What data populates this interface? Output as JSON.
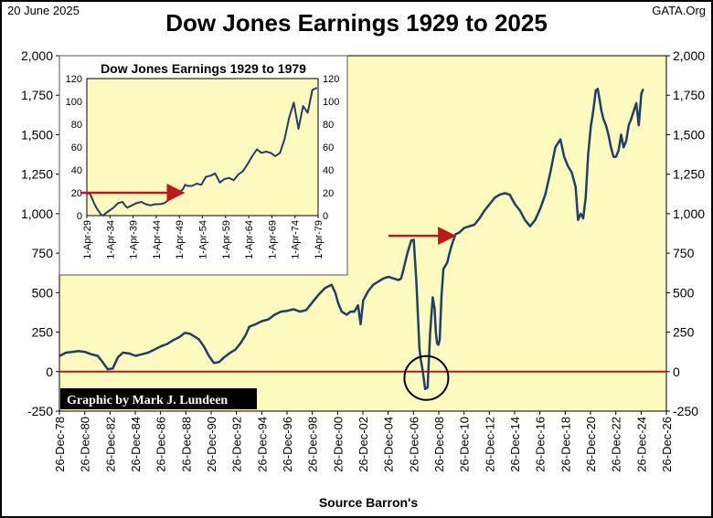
{
  "header": {
    "date": "20 June 2025",
    "source_site": "GATA.Org",
    "title": "Dow Jones Earnings 1929 to 2025"
  },
  "credit": "Graphic by Mark J. Lundeen",
  "source": "Source Barron's",
  "colors": {
    "plot_bg": "#fdfac0",
    "line": "#1f3f66",
    "arrow": "#c0171a",
    "zero_line": "#c0171a",
    "credit_bg": "#000000",
    "credit_text": "#ffffff"
  },
  "chart_data": [
    {
      "id": "main",
      "type": "line",
      "title": "Dow Jones Earnings 1929 to 2025",
      "xlabel": "Source Barron's",
      "ylabel": "",
      "x_range": [
        1978.98,
        2026.98
      ],
      "ylim": [
        -250,
        2000
      ],
      "y_ticks": [
        -250,
        0,
        250,
        500,
        750,
        1000,
        1250,
        1500,
        1750,
        2000
      ],
      "y_tick_labels": [
        "-250",
        "0",
        "250",
        "500",
        "750",
        "1,000",
        "1,250",
        "1,500",
        "1,750",
        "2,000"
      ],
      "x_ticks": [
        1978.98,
        1980.98,
        1982.98,
        1984.98,
        1986.98,
        1988.98,
        1990.98,
        1992.98,
        1994.98,
        1996.98,
        1998.98,
        2000.98,
        2002.98,
        2004.98,
        2006.98,
        2008.98,
        2010.98,
        2012.98,
        2014.98,
        2016.98,
        2018.98,
        2020.98,
        2022.98,
        2024.98,
        2026.98
      ],
      "x_tick_labels": [
        "26-Dec-78",
        "26-Dec-80",
        "26-Dec-82",
        "26-Dec-84",
        "26-Dec-86",
        "26-Dec-88",
        "26-Dec-90",
        "26-Dec-92",
        "26-Dec-94",
        "26-Dec-96",
        "26-Dec-98",
        "26-Dec-00",
        "26-Dec-02",
        "26-Dec-04",
        "26-Dec-06",
        "26-Dec-08",
        "26-Dec-10",
        "26-Dec-12",
        "26-Dec-14",
        "26-Dec-16",
        "26-Dec-18",
        "26-Dec-20",
        "26-Dec-22",
        "26-Dec-24",
        "26-Dec-26"
      ],
      "grid": false,
      "series": [
        {
          "x": [
            1979.0,
            1979.5,
            1980.0,
            1980.5,
            1981.0,
            1981.5,
            1982.0,
            1982.4,
            1982.8,
            1983.2,
            1983.6,
            1984.0,
            1984.5,
            1985.0,
            1985.5,
            1986.0,
            1986.5,
            1987.0,
            1987.5,
            1988.0,
            1988.5,
            1988.9,
            1989.3,
            1989.7,
            1990.0,
            1990.4,
            1990.8,
            1991.2,
            1991.6,
            1992.0,
            1992.5,
            1992.9,
            1993.3,
            1993.7,
            1994.0,
            1994.5,
            1995.0,
            1995.5,
            1996.0,
            1996.5,
            1997.0,
            1997.5,
            1998.0,
            1998.5,
            1999.0,
            1999.5,
            2000.0,
            2000.5,
            2000.8,
            2001.0,
            2001.3,
            2001.7,
            2002.0,
            2002.3,
            2002.6,
            2002.8,
            2003.0,
            2003.4,
            2003.8,
            2004.2,
            2004.6,
            2005.0,
            2005.4,
            2005.8,
            2006.0,
            2006.2,
            2006.5,
            2006.8,
            2007.0,
            2007.2,
            2007.35,
            2007.45,
            2007.55,
            2007.7,
            2007.9,
            2008.1,
            2008.3,
            2008.5,
            2008.65,
            2008.75,
            2008.85,
            2008.95,
            2009.05,
            2009.2,
            2009.35,
            2009.5,
            2009.65,
            2009.8,
            2010.0,
            2010.3,
            2010.6,
            2011.0,
            2011.4,
            2011.8,
            2012.2,
            2012.6,
            2013.0,
            2013.4,
            2013.8,
            2014.2,
            2014.6,
            2015.0,
            2015.4,
            2015.8,
            2016.2,
            2016.6,
            2017.0,
            2017.4,
            2017.8,
            2018.2,
            2018.6,
            2018.9,
            2019.2,
            2019.5,
            2019.8,
            2020.0,
            2020.2,
            2020.4,
            2020.6,
            2020.8,
            2021.0,
            2021.2,
            2021.4,
            2021.55,
            2021.7,
            2021.85,
            2022.0,
            2022.2,
            2022.4,
            2022.6,
            2022.8,
            2023.0,
            2023.2,
            2023.4,
            2023.6,
            2023.8,
            2024.0,
            2024.2,
            2024.4,
            2024.6,
            2024.8,
            2025.0,
            2025.15
          ],
          "y": [
            100,
            120,
            125,
            130,
            125,
            110,
            100,
            60,
            15,
            20,
            90,
            120,
            115,
            100,
            110,
            120,
            140,
            160,
            175,
            200,
            220,
            245,
            240,
            220,
            205,
            160,
            100,
            55,
            60,
            90,
            120,
            140,
            180,
            230,
            285,
            300,
            320,
            330,
            360,
            380,
            385,
            395,
            380,
            390,
            440,
            490,
            530,
            550,
            500,
            440,
            380,
            360,
            380,
            380,
            420,
            300,
            450,
            510,
            550,
            570,
            590,
            600,
            590,
            580,
            590,
            650,
            750,
            830,
            835,
            580,
            320,
            150,
            80,
            10,
            -110,
            -100,
            250,
            470,
            400,
            250,
            180,
            170,
            200,
            480,
            650,
            670,
            690,
            740,
            800,
            870,
            880,
            910,
            920,
            930,
            970,
            1020,
            1060,
            1100,
            1120,
            1130,
            1120,
            1060,
            1020,
            960,
            920,
            960,
            1030,
            1120,
            1260,
            1420,
            1470,
            1360,
            1300,
            1260,
            1170,
            960,
            1000,
            970,
            1100,
            1380,
            1550,
            1650,
            1780,
            1790,
            1720,
            1650,
            1600,
            1560,
            1500,
            1420,
            1360,
            1360,
            1400,
            1500,
            1420,
            1460,
            1560,
            1600,
            1650,
            1700,
            1560,
            1760,
            1790
          ]
        }
      ],
      "annotations": {
        "arrow": {
          "x_start": 2005.0,
          "x_end": 2010.0,
          "y": 860
        },
        "circle": {
          "x": 2008.0,
          "y": -40
        },
        "zero_line": 0
      }
    },
    {
      "id": "inset",
      "type": "line",
      "title": "Dow Jones Earnings 1929 to 1979",
      "xlabel": "",
      "ylabel": "",
      "x_range": [
        1929.25,
        1979.25
      ],
      "ylim": [
        0,
        120
      ],
      "y_ticks": [
        0,
        20,
        40,
        60,
        80,
        100,
        120
      ],
      "y_tick_labels": [
        "0",
        "20",
        "40",
        "60",
        "80",
        "100",
        "120"
      ],
      "x_ticks": [
        1929.25,
        1934.25,
        1939.25,
        1944.25,
        1949.25,
        1954.25,
        1959.25,
        1964.25,
        1969.25,
        1974.25,
        1979.25
      ],
      "x_tick_labels": [
        "1-Apr-29",
        "1-Apr-34",
        "1-Apr-39",
        "1-Apr-44",
        "1-Apr-49",
        "1-Apr-54",
        "1-Apr-59",
        "1-Apr-64",
        "1-Apr-69",
        "1-Apr-74",
        "1-Apr-79"
      ],
      "grid": false,
      "series": [
        {
          "x": [
            1929.3,
            1929.8,
            1930.3,
            1930.8,
            1931.3,
            1931.8,
            1932.3,
            1932.8,
            1933.3,
            1934.0,
            1935.0,
            1936.0,
            1937.0,
            1937.5,
            1938.0,
            1938.5,
            1939.0,
            1940.0,
            1941.0,
            1942.0,
            1943.0,
            1944.0,
            1945.0,
            1946.0,
            1947.0,
            1948.0,
            1949.0,
            1950.0,
            1950.5,
            1951.0,
            1952.0,
            1953.0,
            1954.0,
            1955.0,
            1956.0,
            1957.0,
            1958.0,
            1959.0,
            1960.0,
            1961.0,
            1962.0,
            1963.0,
            1964.0,
            1965.0,
            1966.0,
            1967.0,
            1968.0,
            1969.0,
            1970.0,
            1971.0,
            1972.0,
            1973.0,
            1974.0,
            1975.0,
            1976.0,
            1977.0,
            1978.0,
            1979.0
          ],
          "y": [
            19,
            20,
            16,
            11,
            7,
            4,
            1,
            0,
            2,
            4,
            7,
            11,
            12,
            9,
            7,
            8,
            9,
            11,
            12,
            10,
            9,
            10,
            10,
            11,
            14,
            17,
            20,
            23,
            27,
            26,
            26,
            28,
            27,
            34,
            35,
            37,
            29,
            32,
            33,
            31,
            36,
            39,
            45,
            52,
            58,
            55,
            56,
            55,
            52,
            55,
            67,
            86,
            99,
            76,
            96,
            90,
            110,
            112
          ]
        }
      ],
      "annotations": {
        "arrow": {
          "x_start": 1929.25,
          "x_end": 1949.5,
          "y": 20
        }
      }
    }
  ]
}
